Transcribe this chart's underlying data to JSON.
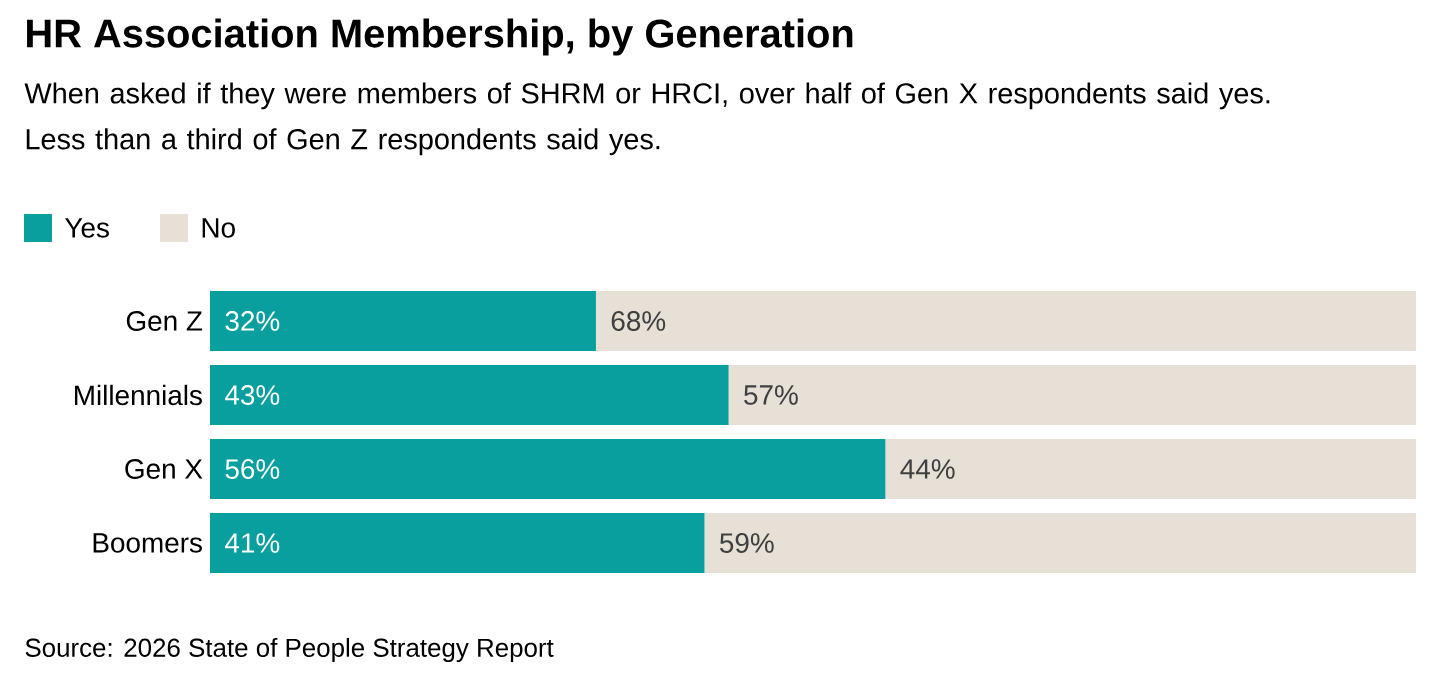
{
  "chart_data": {
    "type": "bar",
    "orientation": "horizontal",
    "stacked": true,
    "title": "HR Association Membership, by Generation",
    "subtitle": "When asked if they were members of SHRM or HRCI, over half of Gen X respondents said yes. Less than a third of Gen Z respondents said yes.",
    "categories": [
      "Gen Z",
      "Millennials",
      "Gen X",
      "Boomers"
    ],
    "series": [
      {
        "name": "Yes",
        "color": "#0a9f9f",
        "values": [
          32,
          43,
          56,
          41
        ],
        "value_labels": [
          "32%",
          "43%",
          "56%",
          "41%"
        ]
      },
      {
        "name": "No",
        "color": "#e6e0d6",
        "values": [
          68,
          57,
          44,
          59
        ],
        "value_labels": [
          "68%",
          "57%",
          "44%",
          "59%"
        ]
      }
    ],
    "xlim": [
      0,
      100
    ],
    "tick_labels": "y",
    "legend": "top left",
    "annotations": [
      "Source: 2026 State of People Strategy Report"
    ]
  }
}
